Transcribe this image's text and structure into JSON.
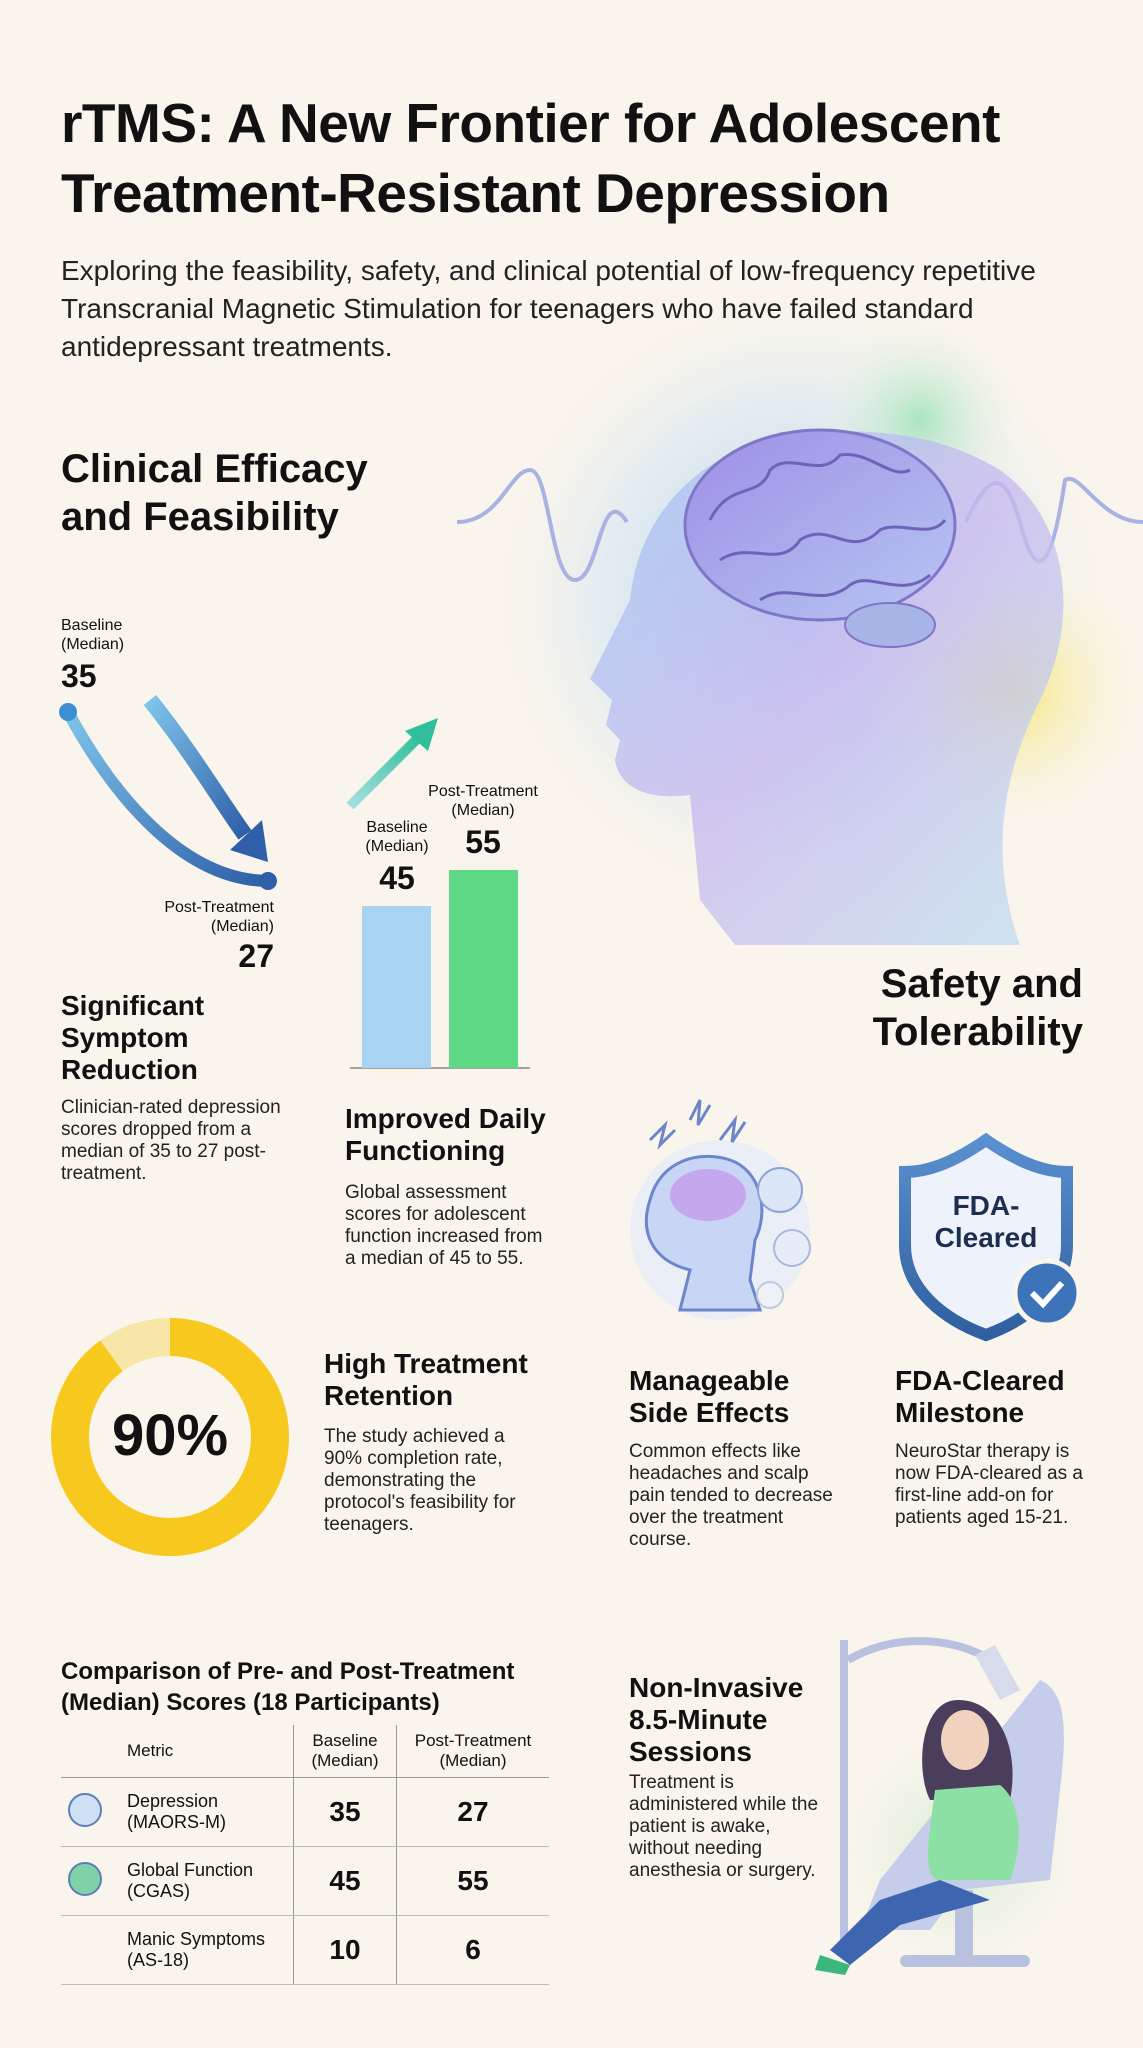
{
  "header": {
    "title": "rTMS: A New Frontier for Adolescent Treatment-Resistant Depression",
    "subtitle": "Exploring the feasibility, safety, and clinical potential of low-frequency repetitive Transcranial Magnetic Stimulation for teenagers who have failed standard antidepressant treatments."
  },
  "efficacy": {
    "heading": "Clinical Efficacy and Feasibility",
    "symptom": {
      "baseline_label": "Baseline (Median)",
      "baseline": 35,
      "post_label": "Post-Treatment (Median)",
      "post": 27,
      "heading": "Significant Symptom Reduction",
      "text": "Clinician-rated depression scores dropped from a median of 35 to 27 post-treatment."
    },
    "functioning": {
      "baseline_label": "Baseline (Median)",
      "baseline": 45,
      "post_label": "Post-Treatment (Median)",
      "post": 55,
      "heading": "Improved Daily Functioning",
      "text": "Global assessment scores for adolescent function increased from a median of 45 to 55."
    },
    "retention": {
      "value": 90,
      "label": "90%",
      "heading": "High Treatment Retention",
      "text": "The study achieved a 90% completion rate, demonstrating the protocol's feasibility for teenagers."
    }
  },
  "safety": {
    "heading": "Safety and Tolerability",
    "side_effects": {
      "heading": "Manageable Side Effects",
      "text": "Common effects like headaches and scalp pain tended to decrease over the treatment course."
    },
    "fda": {
      "badge": "FDA-Cleared",
      "heading": "FDA-Cleared Milestone",
      "text": "NeuroStar therapy is now FDA-cleared as a first-line add-on for patients aged 15-21."
    },
    "sessions": {
      "heading": "Non-Invasive 8.5-Minute Sessions",
      "text": "Treatment is administered while the patient is awake, without needing anesthesia or surgery."
    }
  },
  "table": {
    "title": "Comparison of Pre- and Post-Treatment (Median) Scores (18 Participants)",
    "columns": [
      "Metric",
      "Baseline (Median)",
      "Post-Treatment (Median)"
    ],
    "rows": [
      [
        "Depression (MAORS-M)",
        35,
        27
      ],
      [
        "Global Function (CGAS)",
        45,
        55
      ],
      [
        "Manic Symptoms (AS-18)",
        10,
        6
      ]
    ]
  }
}
